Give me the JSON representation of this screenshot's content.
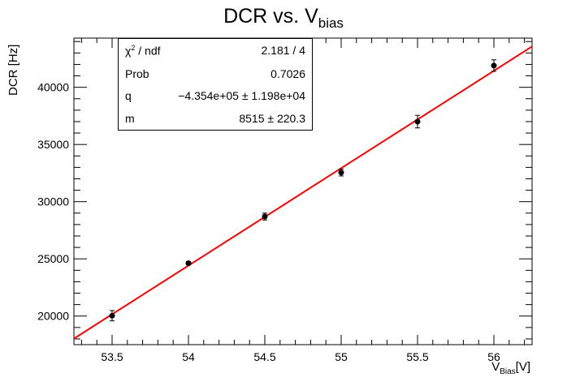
{
  "chart_data": {
    "type": "scatter",
    "title_main": "DCR vs. V",
    "title_sub": "bias",
    "ylabel": "DCR [Hz]",
    "xlabel_main": "V",
    "xlabel_sub": "Bias",
    "xlabel_unit": "[V]",
    "xlim": [
      53.25,
      56.25
    ],
    "ylim": [
      17500,
      44300
    ],
    "x_ticks": [
      "53.5",
      "54",
      "54.5",
      "55",
      "55.5",
      "56"
    ],
    "x_tick_values": [
      53.5,
      54,
      54.5,
      55,
      55.5,
      56
    ],
    "y_ticks": [
      "20000",
      "25000",
      "30000",
      "35000",
      "40000"
    ],
    "y_tick_values": [
      20000,
      25000,
      30000,
      35000,
      40000
    ],
    "series": [
      {
        "x": [
          53.5,
          54.0,
          54.5,
          55.0,
          55.5,
          56.0
        ],
        "y": [
          20030,
          24620,
          28700,
          32550,
          37000,
          41900
        ],
        "yerr": [
          450,
          150,
          300,
          300,
          550,
          500
        ]
      }
    ],
    "fit": {
      "slope": 8515,
      "intercept": -435400,
      "color": "#ff0000"
    },
    "grid": false,
    "stats": {
      "chi2_label": "χ",
      "chi2_sup": "2",
      "chi2_rest": " / ndf",
      "chi2_value": "2.181 / 4",
      "prob_label": "Prob",
      "prob_value": "0.7026",
      "q_label": "q",
      "q_value": "−4.354e+05 ± 1.198e+04",
      "m_label": "m",
      "m_value": "8515 ± 220.3"
    }
  }
}
